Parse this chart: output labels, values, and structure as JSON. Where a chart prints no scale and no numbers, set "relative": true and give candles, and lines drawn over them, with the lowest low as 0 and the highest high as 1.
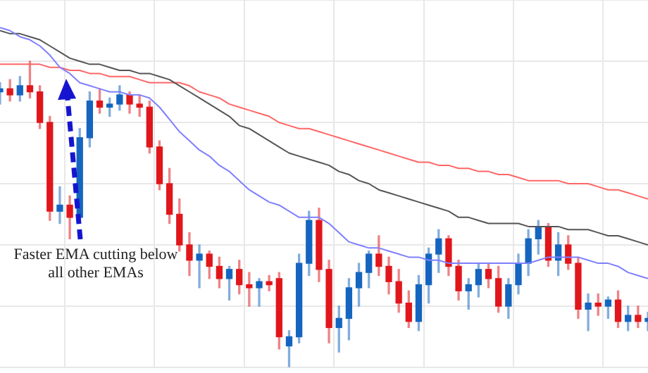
{
  "chart_data": {
    "type": "candlestick",
    "relative": true,
    "grid": true,
    "legend": false,
    "categories": [
      null,
      null,
      null,
      null,
      null,
      null,
      null,
      null,
      null,
      null,
      null,
      null,
      null,
      null,
      null,
      null,
      null,
      null,
      null,
      null,
      null,
      null,
      null,
      null,
      null,
      null,
      null,
      null,
      null,
      null,
      null,
      null,
      null,
      null,
      null,
      null,
      null,
      null,
      null,
      null,
      null,
      null,
      null,
      null,
      null,
      null,
      null,
      null,
      null,
      null,
      null,
      null,
      null,
      null,
      null,
      null,
      null,
      null,
      null,
      null,
      null,
      null,
      null,
      null,
      null,
      null
    ],
    "ohlc": [
      [
        0.9,
        0.93,
        0.86,
        0.91
      ],
      [
        0.91,
        0.94,
        0.87,
        0.89
      ],
      [
        0.89,
        0.95,
        0.87,
        0.92
      ],
      [
        0.92,
        1.0,
        0.88,
        0.9
      ],
      [
        0.9,
        0.92,
        0.78,
        0.8
      ],
      [
        0.8,
        0.82,
        0.48,
        0.51
      ],
      [
        0.51,
        0.59,
        0.47,
        0.53
      ],
      [
        0.53,
        0.56,
        0.42,
        0.49
      ],
      [
        0.49,
        0.78,
        0.47,
        0.75
      ],
      [
        0.75,
        0.9,
        0.72,
        0.87
      ],
      [
        0.87,
        0.91,
        0.83,
        0.85
      ],
      [
        0.85,
        0.88,
        0.82,
        0.86
      ],
      [
        0.86,
        0.92,
        0.84,
        0.89
      ],
      [
        0.89,
        0.9,
        0.83,
        0.86
      ],
      [
        0.86,
        0.89,
        0.82,
        0.85
      ],
      [
        0.85,
        0.87,
        0.7,
        0.72
      ],
      [
        0.72,
        0.74,
        0.58,
        0.6
      ],
      [
        0.6,
        0.65,
        0.47,
        0.5
      ],
      [
        0.5,
        0.55,
        0.38,
        0.4
      ],
      [
        0.4,
        0.44,
        0.3,
        0.35
      ],
      [
        0.35,
        0.4,
        0.26,
        0.37
      ],
      [
        0.37,
        0.38,
        0.29,
        0.33
      ],
      [
        0.33,
        0.36,
        0.26,
        0.29
      ],
      [
        0.29,
        0.33,
        0.22,
        0.32
      ],
      [
        0.32,
        0.35,
        0.24,
        0.27
      ],
      [
        0.27,
        0.31,
        0.2,
        0.26
      ],
      [
        0.26,
        0.29,
        0.2,
        0.28
      ],
      [
        0.28,
        0.3,
        0.25,
        0.27
      ],
      [
        0.29,
        0.31,
        0.06,
        0.1
      ],
      [
        0.07,
        0.12,
        0.0,
        0.1
      ],
      [
        0.1,
        0.37,
        0.08,
        0.34
      ],
      [
        0.34,
        0.51,
        0.3,
        0.48
      ],
      [
        0.48,
        0.52,
        0.28,
        0.32
      ],
      [
        0.32,
        0.35,
        0.08,
        0.13
      ],
      [
        0.13,
        0.2,
        0.05,
        0.16
      ],
      [
        0.16,
        0.29,
        0.09,
        0.26
      ],
      [
        0.26,
        0.34,
        0.2,
        0.31
      ],
      [
        0.31,
        0.38,
        0.26,
        0.37
      ],
      [
        0.37,
        0.43,
        0.3,
        0.33
      ],
      [
        0.33,
        0.36,
        0.24,
        0.28
      ],
      [
        0.28,
        0.32,
        0.18,
        0.21
      ],
      [
        0.21,
        0.25,
        0.13,
        0.15
      ],
      [
        0.15,
        0.3,
        0.12,
        0.27
      ],
      [
        0.27,
        0.39,
        0.21,
        0.37
      ],
      [
        0.37,
        0.45,
        0.31,
        0.42
      ],
      [
        0.42,
        0.43,
        0.3,
        0.33
      ],
      [
        0.33,
        0.35,
        0.22,
        0.25
      ],
      [
        0.25,
        0.29,
        0.19,
        0.27
      ],
      [
        0.27,
        0.34,
        0.23,
        0.32
      ],
      [
        0.32,
        0.34,
        0.26,
        0.29
      ],
      [
        0.29,
        0.33,
        0.18,
        0.2
      ],
      [
        0.2,
        0.29,
        0.16,
        0.27
      ],
      [
        0.27,
        0.37,
        0.24,
        0.34
      ],
      [
        0.34,
        0.45,
        0.3,
        0.42
      ],
      [
        0.42,
        0.48,
        0.37,
        0.46
      ],
      [
        0.46,
        0.47,
        0.33,
        0.35
      ],
      [
        0.35,
        0.44,
        0.3,
        0.4
      ],
      [
        0.4,
        0.43,
        0.32,
        0.34
      ],
      [
        0.34,
        0.36,
        0.16,
        0.19
      ],
      [
        0.19,
        0.24,
        0.12,
        0.21
      ],
      [
        0.21,
        0.24,
        0.17,
        0.2
      ],
      [
        0.2,
        0.23,
        0.16,
        0.22
      ],
      [
        0.22,
        0.25,
        0.13,
        0.15
      ],
      [
        0.15,
        0.2,
        0.12,
        0.17
      ],
      [
        0.17,
        0.2,
        0.13,
        0.15
      ],
      [
        0.15,
        0.18,
        0.12,
        0.16
      ]
    ],
    "colors": [
      "#1565c0",
      "#e0161b",
      "#1565c0",
      "#e0161b",
      "#e0161b",
      "#e0161b",
      "#1565c0",
      "#e0161b",
      "#1565c0",
      "#1565c0",
      "#e0161b",
      "#1565c0",
      "#1565c0",
      "#e0161b",
      "#e0161b",
      "#e0161b",
      "#e0161b",
      "#e0161b",
      "#e0161b",
      "#e0161b",
      "#1565c0",
      "#e0161b",
      "#e0161b",
      "#1565c0",
      "#e0161b",
      "#e0161b",
      "#1565c0",
      "#e0161b",
      "#e0161b",
      "#1565c0",
      "#1565c0",
      "#1565c0",
      "#e0161b",
      "#e0161b",
      "#1565c0",
      "#1565c0",
      "#1565c0",
      "#1565c0",
      "#e0161b",
      "#e0161b",
      "#e0161b",
      "#e0161b",
      "#1565c0",
      "#1565c0",
      "#1565c0",
      "#e0161b",
      "#e0161b",
      "#1565c0",
      "#1565c0",
      "#e0161b",
      "#e0161b",
      "#1565c0",
      "#1565c0",
      "#1565c0",
      "#1565c0",
      "#e0161b",
      "#1565c0",
      "#e0161b",
      "#e0161b",
      "#1565c0",
      "#e0161b",
      "#1565c0",
      "#e0161b",
      "#1565c0",
      "#e0161b",
      "#1565c0"
    ],
    "series": [
      {
        "type": "line",
        "color": "#7f7fff",
        "values": [
          1.11,
          1.1,
          1.08,
          1.07,
          1.05,
          1.02,
          0.98,
          0.96,
          0.93,
          0.92,
          0.91,
          0.9,
          0.9,
          0.89,
          0.89,
          0.88,
          0.85,
          0.81,
          0.77,
          0.74,
          0.71,
          0.69,
          0.66,
          0.64,
          0.61,
          0.58,
          0.56,
          0.54,
          0.53,
          0.51,
          0.49,
          0.49,
          0.49,
          0.47,
          0.44,
          0.41,
          0.4,
          0.39,
          0.39,
          0.38,
          0.37,
          0.36,
          0.36,
          0.35,
          0.35,
          0.34,
          0.34,
          0.34,
          0.34,
          0.34,
          0.34,
          0.34,
          0.34,
          0.34,
          0.35,
          0.36,
          0.36,
          0.36,
          0.36,
          0.35,
          0.34,
          0.34,
          0.33,
          0.31,
          0.3,
          0.29
        ]
      },
      {
        "type": "line",
        "color": "#555555",
        "values": [
          1.1,
          1.09,
          1.09,
          1.08,
          1.07,
          1.05,
          1.03,
          1.01,
          1.0,
          0.99,
          0.99,
          0.98,
          0.97,
          0.97,
          0.96,
          0.96,
          0.95,
          0.94,
          0.92,
          0.9,
          0.88,
          0.86,
          0.84,
          0.82,
          0.79,
          0.78,
          0.76,
          0.74,
          0.72,
          0.7,
          0.69,
          0.68,
          0.67,
          0.66,
          0.64,
          0.63,
          0.61,
          0.6,
          0.58,
          0.57,
          0.56,
          0.55,
          0.54,
          0.53,
          0.52,
          0.51,
          0.49,
          0.49,
          0.48,
          0.47,
          0.47,
          0.47,
          0.47,
          0.46,
          0.46,
          0.46,
          0.46,
          0.45,
          0.45,
          0.45,
          0.44,
          0.43,
          0.43,
          0.42,
          0.41,
          0.4
        ]
      },
      {
        "type": "line",
        "color": "#ff6666",
        "values": [
          0.99,
          0.99,
          0.99,
          0.99,
          0.99,
          0.98,
          0.98,
          0.97,
          0.97,
          0.96,
          0.96,
          0.95,
          0.95,
          0.95,
          0.94,
          0.93,
          0.93,
          0.93,
          0.93,
          0.92,
          0.9,
          0.89,
          0.88,
          0.86,
          0.85,
          0.84,
          0.83,
          0.82,
          0.8,
          0.79,
          0.78,
          0.78,
          0.77,
          0.76,
          0.75,
          0.74,
          0.73,
          0.72,
          0.71,
          0.7,
          0.69,
          0.68,
          0.67,
          0.67,
          0.66,
          0.66,
          0.65,
          0.65,
          0.64,
          0.64,
          0.63,
          0.63,
          0.62,
          0.61,
          0.61,
          0.61,
          0.61,
          0.6,
          0.6,
          0.6,
          0.59,
          0.58,
          0.58,
          0.57,
          0.56,
          0.55
        ]
      }
    ],
    "annotations": [
      "Faster EMA cutting below all other EMAs"
    ]
  }
}
